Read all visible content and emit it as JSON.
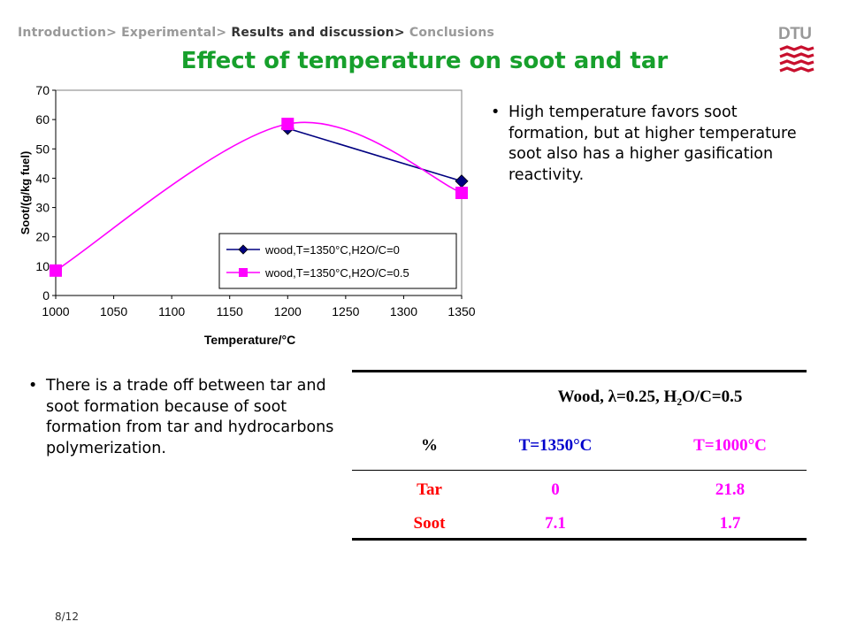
{
  "breadcrumb": {
    "items": [
      {
        "label": "Introduction>",
        "active": false
      },
      {
        "label": "Experimental>",
        "active": false
      },
      {
        "label": "Results and discussion>",
        "active": true
      },
      {
        "label": "Conclusions",
        "active": false
      }
    ]
  },
  "logo": {
    "text": "DTU",
    "color": "#c8102e"
  },
  "slide": {
    "title": "Effect of temperature on soot and tar",
    "title_color": "#17a02c",
    "page_number": "8/12"
  },
  "bullets": {
    "first": "High temperature favors soot formation, but at higher temperature soot also has a higher gasification reactivity.",
    "second": "There is a trade off between tar and soot formation because of soot formation from tar and hydrocarbons polymerization."
  },
  "table": {
    "header": "Wood, λ=0.25, H₂O/C=0.5",
    "col0": "%",
    "col1": "T=1350°C",
    "col2": "T=1000°C",
    "col1_color": "#0000cc",
    "col2_color": "#ff00ff",
    "rows": [
      {
        "label": "Tar",
        "label_color": "#ff0000",
        "t1350": "0",
        "t1350_color": "#ff00ff",
        "t1000": "21.8",
        "t1000_color": "#ff00ff"
      },
      {
        "label": "Soot",
        "label_color": "#ff0000",
        "t1350": "7.1",
        "t1350_color": "#ff00ff",
        "t1000": "1.7",
        "t1000_color": "#ff00ff"
      }
    ]
  },
  "chart_data": {
    "type": "line",
    "xlabel": "Temperature/°C",
    "ylabel": "Soot/(g/kg fuel)",
    "xlim": [
      1000,
      1350
    ],
    "ylim": [
      0,
      70
    ],
    "xticks": [
      "1000",
      "1050",
      "1100",
      "1150",
      "1200",
      "1250",
      "1300",
      "1350"
    ],
    "yticks": [
      "0",
      "10",
      "20",
      "30",
      "40",
      "50",
      "60",
      "70"
    ],
    "grid": false,
    "legend": "bottom-right",
    "series": [
      {
        "name": "wood,T=1350°C,H2O/C=0",
        "color": "#000080",
        "marker": "diamond",
        "smooth": false,
        "x": [
          1200,
          1350
        ],
        "y": [
          57,
          39
        ]
      },
      {
        "name": "wood,T=1350°C,H2O/C=0.5",
        "color": "#ff00ff",
        "marker": "square",
        "smooth": true,
        "x": [
          1000,
          1200,
          1350
        ],
        "y": [
          8.5,
          58.5,
          35
        ]
      }
    ]
  }
}
